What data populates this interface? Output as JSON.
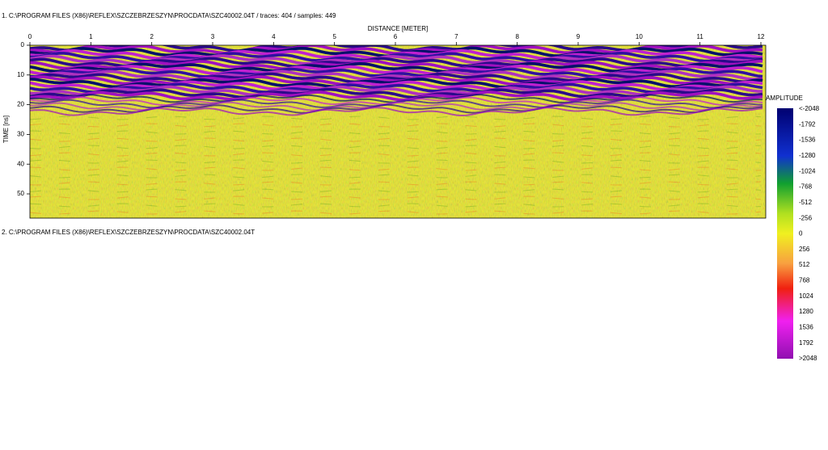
{
  "header": {
    "file1": "1. C:\\PROGRAM FILES (X86)\\REFLEX\\SZCZEBRZESZYN\\PROCDATA\\SZC40002.04T  / traces: 404 / samples: 449",
    "file2": "2. C:\\PROGRAM FILES (X86)\\REFLEX\\SZCZEBRZESZYN\\PROCDATA\\SZC40002.04T"
  },
  "distance_axis": {
    "label": "DISTANCE [METER]",
    "ticks": [
      0,
      1,
      2,
      3,
      4,
      5,
      6,
      7,
      8,
      9,
      10,
      11,
      12
    ]
  },
  "time_axis": {
    "label": "TIME [ns]",
    "ticks": [
      0,
      10,
      20,
      30,
      40,
      50
    ]
  },
  "colorbar": {
    "title": "AMPLITUDE",
    "labels": [
      "<-2048",
      "-1792",
      "-1536",
      "-1280",
      "-1024",
      "-768",
      "-512",
      "-256",
      "0",
      "256",
      "512",
      "768",
      "1024",
      "1280",
      "1536",
      "1792",
      ">2048"
    ]
  }
}
